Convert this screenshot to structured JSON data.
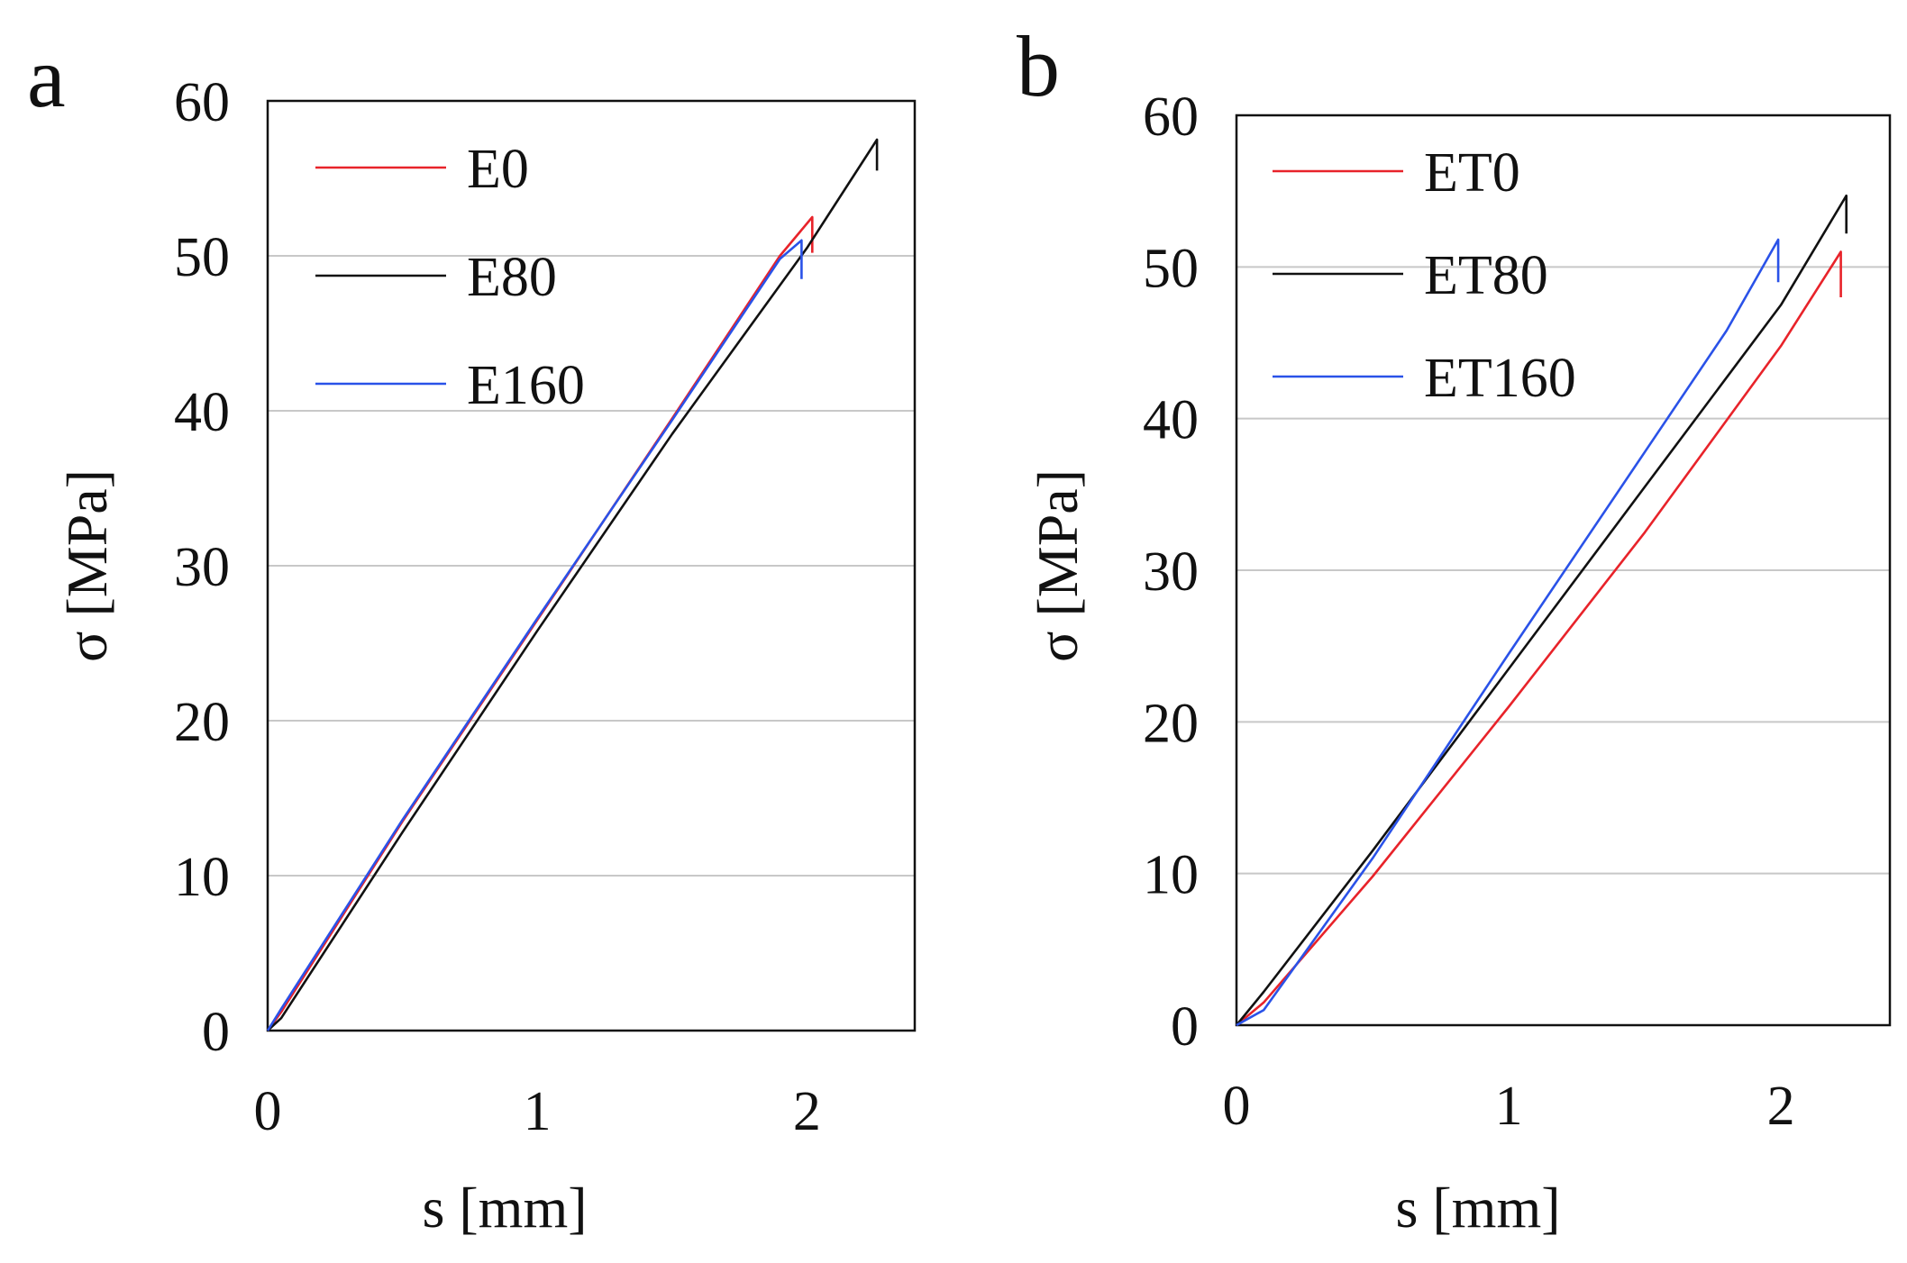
{
  "chart_data": [
    {
      "panel": "a",
      "type": "line",
      "xlabel": "s [mm]",
      "ylabel": "σ [MPa]",
      "xlim": [
        0,
        2.4
      ],
      "ylim": [
        0,
        60
      ],
      "xticks": [
        "0",
        "1",
        "2"
      ],
      "yticks": [
        "0",
        "10",
        "20",
        "30",
        "40",
        "50",
        "60"
      ],
      "grid": "horizontal",
      "legend_position": "top-left",
      "series": [
        {
          "name": "E0",
          "color": "#e8232a",
          "x": [
            0,
            0.05,
            0.5,
            1.0,
            1.5,
            1.9,
            2.02,
            2.02
          ],
          "y": [
            0,
            1.2,
            13.5,
            26.5,
            39.5,
            50.0,
            52.5,
            50.2
          ]
        },
        {
          "name": "E80",
          "color": "#111111",
          "x": [
            0,
            0.05,
            0.5,
            1.0,
            1.5,
            2.0,
            2.26,
            2.26
          ],
          "y": [
            0,
            0.8,
            12.8,
            25.8,
            38.5,
            50.5,
            57.5,
            55.5
          ]
        },
        {
          "name": "E160",
          "color": "#2a52e8",
          "x": [
            0,
            0.05,
            0.5,
            1.0,
            1.5,
            1.9,
            1.98,
            1.98
          ],
          "y": [
            0,
            1.4,
            13.6,
            26.6,
            39.4,
            49.8,
            51.0,
            48.5
          ]
        }
      ]
    },
    {
      "panel": "b",
      "type": "line",
      "xlabel": "s [mm]",
      "ylabel": "σ [MPa]",
      "xlim": [
        0,
        2.4
      ],
      "ylim": [
        0,
        60
      ],
      "xticks": [
        "0",
        "1",
        "2"
      ],
      "yticks": [
        "0",
        "10",
        "20",
        "30",
        "40",
        "50",
        "60"
      ],
      "grid": "horizontal",
      "legend_position": "top-left",
      "series": [
        {
          "name": "ET0",
          "color": "#e8232a",
          "x": [
            0,
            0.1,
            0.5,
            1.0,
            1.5,
            2.0,
            2.22,
            2.22
          ],
          "y": [
            0,
            1.5,
            9.8,
            21.0,
            32.5,
            44.8,
            51.0,
            48.0
          ]
        },
        {
          "name": "ET80",
          "color": "#111111",
          "x": [
            0,
            0.1,
            0.5,
            1.0,
            1.5,
            2.0,
            2.24,
            2.24
          ],
          "y": [
            0,
            2.2,
            11.5,
            23.5,
            35.5,
            47.5,
            54.7,
            52.2
          ]
        },
        {
          "name": "ET160",
          "color": "#2a52e8",
          "x": [
            0,
            0.1,
            0.5,
            1.0,
            1.5,
            1.8,
            1.99,
            1.99
          ],
          "y": [
            0,
            1.0,
            11.0,
            24.5,
            37.8,
            45.8,
            51.8,
            49.0
          ]
        }
      ]
    }
  ]
}
